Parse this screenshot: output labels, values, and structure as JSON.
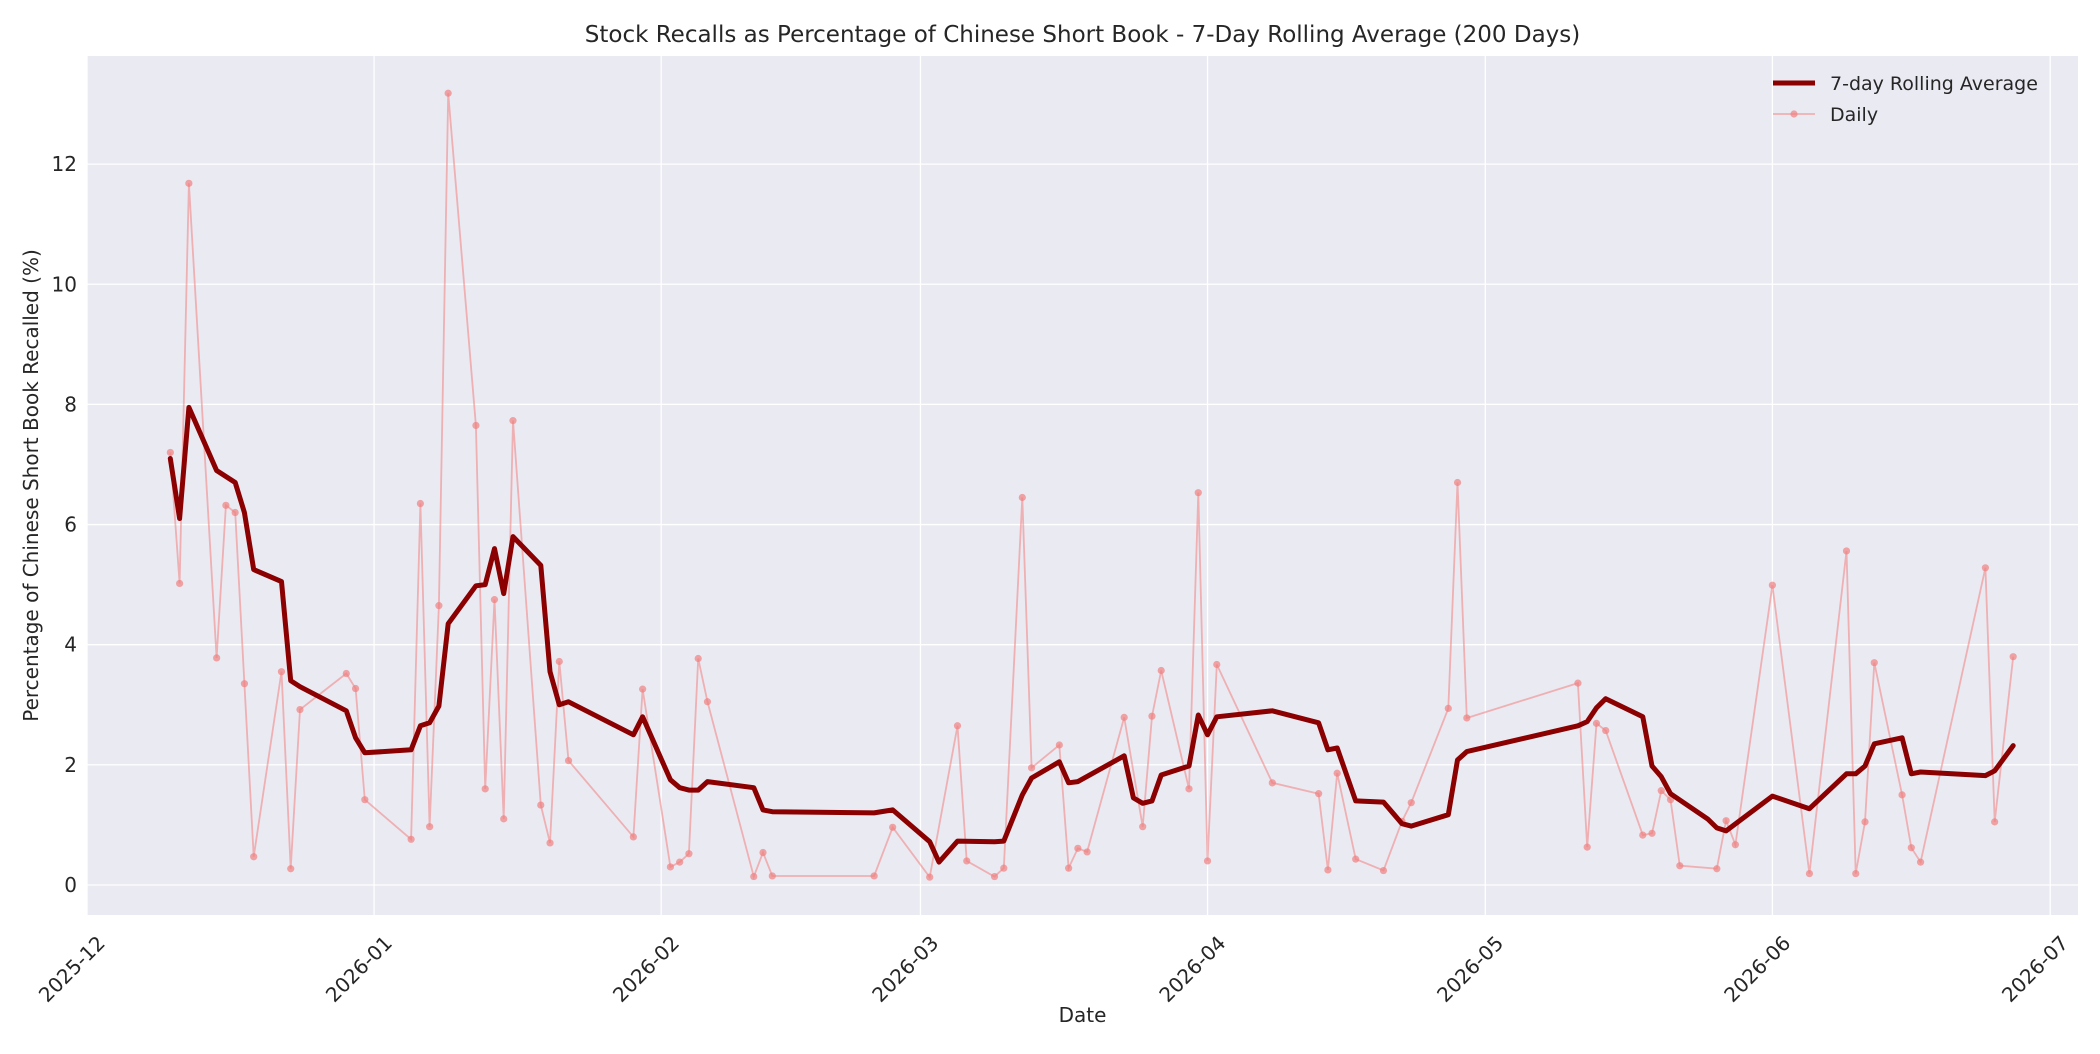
{
  "chart_data": {
    "type": "line",
    "title": "Stock Recalls as Percentage of Chinese Short Book - 7-Day Rolling Average (200 Days)",
    "xlabel": "Date",
    "ylabel": "Percentage of Chinese Short Book Recalled (%)",
    "x_range": [
      "2025-12-01",
      "2026-07-04"
    ],
    "ylim": [
      -0.5,
      13.8
    ],
    "grid": true,
    "legend_position": "top-right",
    "x_ticks": [
      "2025-12",
      "2026-01",
      "2026-02",
      "2026-03",
      "2026-04",
      "2026-05",
      "2026-06",
      "2026-07"
    ],
    "y_ticks": [
      "0",
      "2",
      "4",
      "6",
      "8",
      "10",
      "12"
    ],
    "colors": {
      "background": "#eaeaf2",
      "grid": "#ffffff",
      "rolling": "#8b0000",
      "daily": "#f08080"
    },
    "series": [
      {
        "name": "7-day Rolling Average",
        "x": [
          "2025-12-10",
          "2025-12-11",
          "2025-12-12",
          "2025-12-15",
          "2025-12-17",
          "2025-12-18",
          "2025-12-19",
          "2025-12-22",
          "2025-12-23",
          "2025-12-24",
          "2025-12-29",
          "2025-12-30",
          "2025-12-31",
          "2026-01-05",
          "2026-01-06",
          "2026-01-07",
          "2026-01-08",
          "2026-01-09",
          "2026-01-12",
          "2026-01-13",
          "2026-01-14",
          "2026-01-15",
          "2026-01-16",
          "2026-01-19",
          "2026-01-20",
          "2026-01-21",
          "2026-01-22",
          "2026-01-29",
          "2026-01-30",
          "2026-02-02",
          "2026-02-03",
          "2026-02-04",
          "2026-02-05",
          "2026-02-06",
          "2026-02-11",
          "2026-02-12",
          "2026-02-13",
          "2026-02-24",
          "2026-02-26",
          "2026-03-02",
          "2026-03-03",
          "2026-03-05",
          "2026-03-09",
          "2026-03-10",
          "2026-03-12",
          "2026-03-13",
          "2026-03-16",
          "2026-03-17",
          "2026-03-18",
          "2026-03-23",
          "2026-03-24",
          "2026-03-25",
          "2026-03-26",
          "2026-03-27",
          "2026-03-30",
          "2026-03-31",
          "2026-04-01",
          "2026-04-02",
          "2026-04-08",
          "2026-04-13",
          "2026-04-14",
          "2026-04-15",
          "2026-04-17",
          "2026-04-20",
          "2026-04-22",
          "2026-04-23",
          "2026-04-27",
          "2026-04-28",
          "2026-04-29",
          "2026-05-11",
          "2026-05-12",
          "2026-05-13",
          "2026-05-14",
          "2026-05-18",
          "2026-05-19",
          "2026-05-20",
          "2026-05-21",
          "2026-05-25",
          "2026-05-26",
          "2026-05-27",
          "2026-06-01",
          "2026-06-05",
          "2026-06-09",
          "2026-06-10",
          "2026-06-11",
          "2026-06-12",
          "2026-06-15",
          "2026-06-16",
          "2026-06-17",
          "2026-06-24",
          "2026-06-25",
          "2026-06-27"
        ],
        "values": [
          7.1,
          6.1,
          7.95,
          6.9,
          6.7,
          6.2,
          5.25,
          5.05,
          3.4,
          3.3,
          2.9,
          2.45,
          2.2,
          2.25,
          2.65,
          2.7,
          2.98,
          4.35,
          4.98,
          5.0,
          5.6,
          4.85,
          5.8,
          5.32,
          3.55,
          3.0,
          3.05,
          2.5,
          2.8,
          1.75,
          1.62,
          1.58,
          1.58,
          1.72,
          1.62,
          1.25,
          1.22,
          1.2,
          1.25,
          0.72,
          0.38,
          0.73,
          0.72,
          0.73,
          1.5,
          1.78,
          2.05,
          1.7,
          1.72,
          2.15,
          1.45,
          1.36,
          1.4,
          1.83,
          1.98,
          2.83,
          2.5,
          2.8,
          2.9,
          2.7,
          2.25,
          2.28,
          1.4,
          1.38,
          1.02,
          0.98,
          1.17,
          2.08,
          2.22,
          2.65,
          2.72,
          2.95,
          3.1,
          2.8,
          1.98,
          1.8,
          1.52,
          1.1,
          0.95,
          0.9,
          1.48,
          1.27,
          1.85,
          1.85,
          1.98,
          2.35,
          2.45,
          1.85,
          1.88,
          1.82,
          1.9,
          2.32
        ]
      },
      {
        "name": "Daily",
        "x": [
          "2025-12-10",
          "2025-12-11",
          "2025-12-12",
          "2025-12-15",
          "2025-12-16",
          "2025-12-17",
          "2025-12-18",
          "2025-12-19",
          "2025-12-22",
          "2025-12-23",
          "2025-12-24",
          "2025-12-29",
          "2025-12-30",
          "2025-12-31",
          "2026-01-05",
          "2026-01-06",
          "2026-01-07",
          "2026-01-08",
          "2026-01-09",
          "2026-01-12",
          "2026-01-13",
          "2026-01-14",
          "2026-01-15",
          "2026-01-16",
          "2026-01-19",
          "2026-01-20",
          "2026-01-21",
          "2026-01-22",
          "2026-01-29",
          "2026-01-30",
          "2026-02-02",
          "2026-02-03",
          "2026-02-04",
          "2026-02-05",
          "2026-02-06",
          "2026-02-11",
          "2026-02-12",
          "2026-02-13",
          "2026-02-24",
          "2026-02-26",
          "2026-03-02",
          "2026-03-05",
          "2026-03-06",
          "2026-03-09",
          "2026-03-10",
          "2026-03-12",
          "2026-03-13",
          "2026-03-16",
          "2026-03-17",
          "2026-03-18",
          "2026-03-19",
          "2026-03-23",
          "2026-03-25",
          "2026-03-26",
          "2026-03-27",
          "2026-03-30",
          "2026-03-31",
          "2026-04-01",
          "2026-04-02",
          "2026-04-08",
          "2026-04-13",
          "2026-04-14",
          "2026-04-15",
          "2026-04-17",
          "2026-04-20",
          "2026-04-22",
          "2026-04-23",
          "2026-04-27",
          "2026-04-28",
          "2026-04-29",
          "2026-05-11",
          "2026-05-12",
          "2026-05-13",
          "2026-05-14",
          "2026-05-18",
          "2026-05-19",
          "2026-05-20",
          "2026-05-21",
          "2026-05-22",
          "2026-05-26",
          "2026-05-27",
          "2026-05-28",
          "2026-06-01",
          "2026-06-05",
          "2026-06-09",
          "2026-06-10",
          "2026-06-11",
          "2026-06-12",
          "2026-06-15",
          "2026-06-16",
          "2026-06-17",
          "2026-06-24",
          "2026-06-25",
          "2026-06-27"
        ],
        "values": [
          7.2,
          5.02,
          11.68,
          3.78,
          6.32,
          6.2,
          3.35,
          0.47,
          3.55,
          0.27,
          2.92,
          3.52,
          3.27,
          1.42,
          0.76,
          6.35,
          0.97,
          4.65,
          13.18,
          7.65,
          1.6,
          4.75,
          1.1,
          7.73,
          1.33,
          0.7,
          3.72,
          2.07,
          0.8,
          3.26,
          0.3,
          0.38,
          0.52,
          3.77,
          3.05,
          0.14,
          0.54,
          0.15,
          0.15,
          0.96,
          0.13,
          2.65,
          0.4,
          0.14,
          0.28,
          6.45,
          1.95,
          2.33,
          0.28,
          0.61,
          0.55,
          2.79,
          0.97,
          2.81,
          3.57,
          1.6,
          6.53,
          0.4,
          3.67,
          1.7,
          1.52,
          0.25,
          1.86,
          0.43,
          0.24,
          1.06,
          1.37,
          2.94,
          6.7,
          2.78,
          3.36,
          0.63,
          2.69,
          2.57,
          0.83,
          0.86,
          1.57,
          1.42,
          0.32,
          0.27,
          1.07,
          0.67,
          4.99,
          0.19,
          5.56,
          0.19,
          1.05,
          3.7,
          1.5,
          0.62,
          0.38,
          5.28,
          1.05,
          3.8
        ]
      }
    ]
  }
}
